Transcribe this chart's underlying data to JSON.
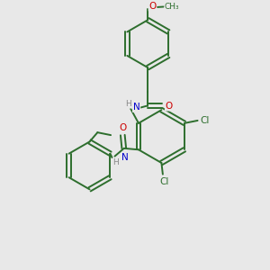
{
  "background_color": "#e8e8e8",
  "bond_color": "#2d6e2d",
  "atom_colors": {
    "O": "#cc0000",
    "N": "#0000cc",
    "Cl": "#2d6e2d",
    "C": "#2d6e2d",
    "H": "#888888"
  },
  "figsize": [
    3.0,
    3.0
  ],
  "dpi": 100
}
